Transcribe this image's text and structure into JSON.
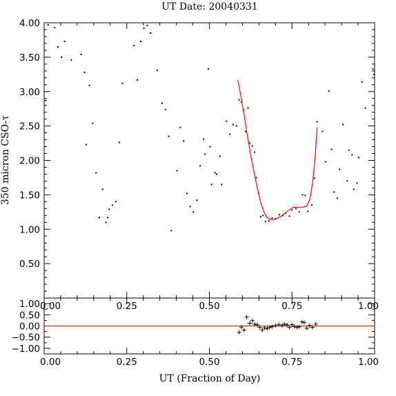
{
  "chart_data": [
    {
      "type": "scatter",
      "title": "UT Date: 20040331",
      "ylabel": "350 micron CSO-τ",
      "xlim": [
        0,
        1
      ],
      "ylim": [
        0,
        4
      ],
      "xticks": [
        "0.00",
        "0.25",
        "0.50",
        "0.75",
        "1.00"
      ],
      "yticks": [
        "0.50",
        "1.00",
        "1.50",
        "2.00",
        "2.50",
        "3.00",
        "3.50",
        "4.00"
      ],
      "series": [
        {
          "values": [
            [
              0.005,
              2.87
            ],
            [
              0.012,
              3.97
            ],
            [
              0.032,
              3.93
            ],
            [
              0.042,
              3.65
            ],
            [
              0.052,
              3.5
            ],
            [
              0.062,
              3.73
            ],
            [
              0.082,
              3.46
            ],
            [
              0.112,
              3.54
            ],
            [
              0.122,
              3.28
            ],
            [
              0.127,
              2.23
            ],
            [
              0.137,
              3.09
            ],
            [
              0.147,
              2.54
            ],
            [
              0.157,
              1.82
            ],
            [
              0.167,
              1.17
            ],
            [
              0.177,
              1.58
            ],
            [
              0.187,
              1.1
            ],
            [
              0.192,
              1.17
            ],
            [
              0.197,
              1.29
            ],
            [
              0.207,
              1.35
            ],
            [
              0.217,
              1.4
            ],
            [
              0.227,
              2.26
            ],
            [
              0.237,
              3.12
            ],
            [
              0.272,
              3.67
            ],
            [
              0.282,
              3.17
            ],
            [
              0.292,
              3.73
            ],
            [
              0.302,
              3.92
            ],
            [
              0.312,
              3.96
            ],
            [
              0.322,
              3.85
            ],
            [
              0.342,
              3.31
            ],
            [
              0.357,
              2.83
            ],
            [
              0.367,
              2.74
            ],
            [
              0.377,
              2.35
            ],
            [
              0.385,
              0.98
            ],
            [
              0.402,
              1.85
            ],
            [
              0.412,
              2.48
            ],
            [
              0.422,
              2.28
            ],
            [
              0.432,
              1.52
            ],
            [
              0.442,
              1.33
            ],
            [
              0.452,
              1.25
            ],
            [
              0.462,
              1.42
            ],
            [
              0.472,
              1.92
            ],
            [
              0.482,
              2.31
            ],
            [
              0.487,
              2.09
            ],
            [
              0.497,
              3.33
            ],
            [
              0.502,
              2.2
            ],
            [
              0.507,
              1.65
            ],
            [
              0.517,
              1.82
            ],
            [
              0.522,
              1.8
            ],
            [
              0.532,
              2.06
            ],
            [
              0.537,
              1.65
            ],
            [
              0.552,
              2.57
            ],
            [
              0.562,
              2.38
            ],
            [
              0.572,
              2.52
            ],
            [
              0.582,
              2.5
            ],
            [
              0.59,
              2.88
            ],
            [
              0.597,
              2.85
            ],
            [
              0.603,
              2.73
            ],
            [
              0.61,
              2.42
            ],
            [
              0.617,
              2.76
            ],
            [
              0.622,
              2.25
            ],
            [
              0.63,
              2.21
            ],
            [
              0.637,
              2.12
            ],
            [
              0.642,
              1.75
            ],
            [
              0.649,
              1.52
            ],
            [
              0.655,
              1.18
            ],
            [
              0.662,
              1.2
            ],
            [
              0.67,
              1.11
            ],
            [
              0.68,
              1.12
            ],
            [
              0.69,
              1.16
            ],
            [
              0.7,
              1.15
            ],
            [
              0.712,
              1.21
            ],
            [
              0.722,
              1.2
            ],
            [
              0.73,
              1.23
            ],
            [
              0.742,
              1.19
            ],
            [
              0.75,
              1.28
            ],
            [
              0.762,
              1.3
            ],
            [
              0.772,
              1.25
            ],
            [
              0.782,
              1.5
            ],
            [
              0.79,
              1.49
            ],
            [
              0.798,
              1.26
            ],
            [
              0.81,
              1.35
            ],
            [
              0.818,
              1.74
            ],
            [
              0.826,
              2.56
            ],
            [
              0.842,
              2.42
            ],
            [
              0.852,
              1.98
            ],
            [
              0.862,
              3.01
            ],
            [
              0.87,
              2.16
            ],
            [
              0.877,
              1.54
            ],
            [
              0.887,
              1.45
            ],
            [
              0.894,
              1.87
            ],
            [
              0.904,
              2.52
            ],
            [
              0.917,
              1.7
            ],
            [
              0.922,
              2.15
            ],
            [
              0.932,
              2.08
            ],
            [
              0.937,
              1.58
            ],
            [
              0.947,
              1.67
            ],
            [
              0.952,
              2.04
            ],
            [
              0.962,
              3.14
            ],
            [
              0.972,
              2.76
            ],
            [
              0.995,
              3.33
            ],
            [
              0.998,
              3.25
            ]
          ],
          "color": "#000000"
        },
        {
          "type": "line",
          "color": "#ff0000",
          "values": [
            [
              0.586,
              3.17
            ],
            [
              0.595,
              2.94
            ],
            [
              0.605,
              2.66
            ],
            [
              0.615,
              2.36
            ],
            [
              0.625,
              2.08
            ],
            [
              0.635,
              1.83
            ],
            [
              0.645,
              1.6
            ],
            [
              0.655,
              1.4
            ],
            [
              0.665,
              1.25
            ],
            [
              0.675,
              1.17
            ],
            [
              0.685,
              1.14
            ],
            [
              0.695,
              1.14
            ],
            [
              0.705,
              1.16
            ],
            [
              0.715,
              1.18
            ],
            [
              0.725,
              1.22
            ],
            [
              0.735,
              1.26
            ],
            [
              0.745,
              1.29
            ],
            [
              0.755,
              1.32
            ],
            [
              0.765,
              1.32
            ],
            [
              0.775,
              1.32
            ],
            [
              0.785,
              1.32
            ],
            [
              0.795,
              1.34
            ],
            [
              0.805,
              1.45
            ],
            [
              0.813,
              1.7
            ],
            [
              0.82,
              2.05
            ],
            [
              0.826,
              2.48
            ]
          ]
        }
      ]
    },
    {
      "type": "scatter",
      "xlabel": "UT (Fraction of Day)",
      "xlim": [
        0,
        1
      ],
      "ylim": [
        -1.25,
        1.25
      ],
      "xticks": [
        "0.00",
        "0.25",
        "0.50",
        "0.75",
        "1.00"
      ],
      "yticks": [
        "−1.00",
        "−0.50",
        "0.00",
        "0.50",
        "1.00"
      ],
      "reference_line": {
        "y": 0,
        "color": "#ff0000"
      },
      "series": [
        {
          "marker": "plus",
          "color": "#000000",
          "values": [
            [
              0.59,
              -0.28
            ],
            [
              0.597,
              -0.05
            ],
            [
              0.605,
              -0.18
            ],
            [
              0.613,
              0.4
            ],
            [
              0.622,
              0.12
            ],
            [
              0.63,
              0.24
            ],
            [
              0.637,
              0.08
            ],
            [
              0.645,
              0.05
            ],
            [
              0.652,
              -0.06
            ],
            [
              0.66,
              -0.18
            ],
            [
              0.667,
              -0.08
            ],
            [
              0.675,
              -0.12
            ],
            [
              0.682,
              -0.06
            ],
            [
              0.69,
              -0.03
            ],
            [
              0.7,
              0.02
            ],
            [
              0.71,
              0.06
            ],
            [
              0.72,
              0.02
            ],
            [
              0.727,
              0.08
            ],
            [
              0.735,
              0.05
            ],
            [
              0.742,
              -0.06
            ],
            [
              0.75,
              0.06
            ],
            [
              0.757,
              -0.02
            ],
            [
              0.765,
              -0.06
            ],
            [
              0.772,
              -0.04
            ],
            [
              0.78,
              0.18
            ],
            [
              0.787,
              0.16
            ],
            [
              0.795,
              -0.1
            ],
            [
              0.803,
              0.02
            ],
            [
              0.812,
              -0.06
            ],
            [
              0.822,
              0.08
            ]
          ]
        }
      ]
    }
  ]
}
